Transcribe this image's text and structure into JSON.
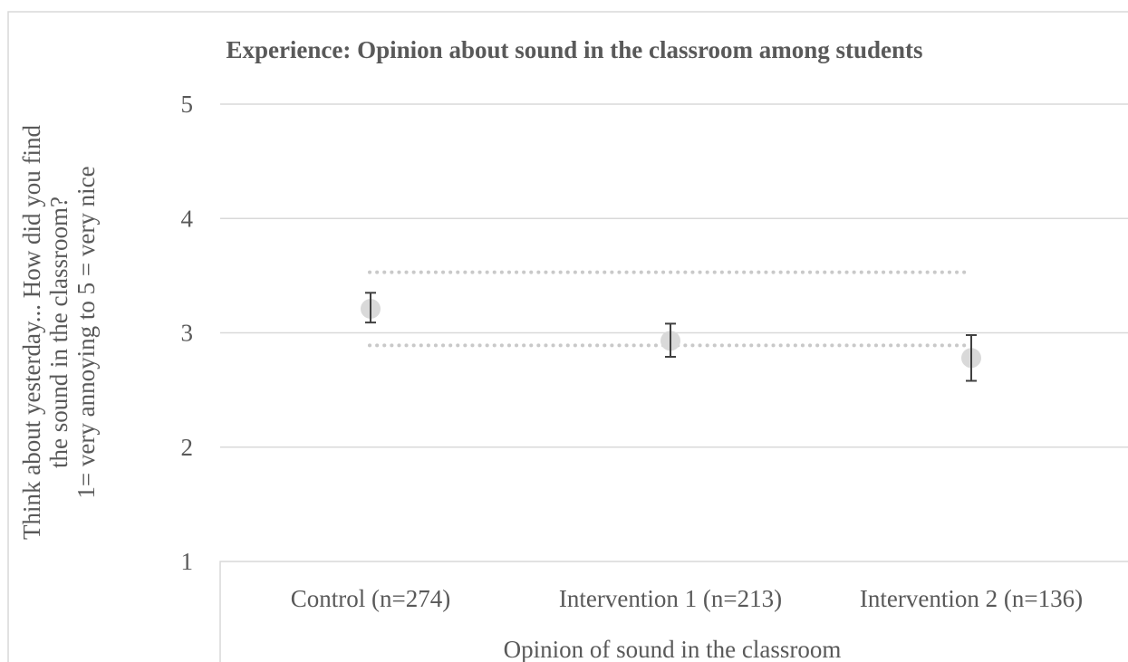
{
  "chart_data": {
    "type": "scatter",
    "title": "Experience: Opinion about sound in the classroom among students",
    "xlabel": "Opinion of sound in the classroom",
    "ylabel_lines": [
      "Think about yesterday... How did you find",
      "the sound in the classroom?",
      "1= very annoying to 5 = very nice"
    ],
    "ylim": [
      1,
      5
    ],
    "yticks": [
      "1",
      "2",
      "3",
      "4",
      "5"
    ],
    "categories": [
      "Control (n=274)",
      "Intervention 1 (n=213)",
      "Intervention 2 (n=136)"
    ],
    "values": [
      3.21,
      2.93,
      2.78
    ],
    "error_low": [
      3.09,
      2.79,
      2.58
    ],
    "error_high": [
      3.35,
      3.08,
      2.98
    ],
    "reference_lines": [
      3.53,
      2.89
    ],
    "grid": true,
    "legend": "none",
    "colors": {
      "point": "#d9d9d9",
      "errorbar": "#404040",
      "grid": "#d9d9d9",
      "reference": "#c9c9c9",
      "text": "#595959"
    }
  }
}
